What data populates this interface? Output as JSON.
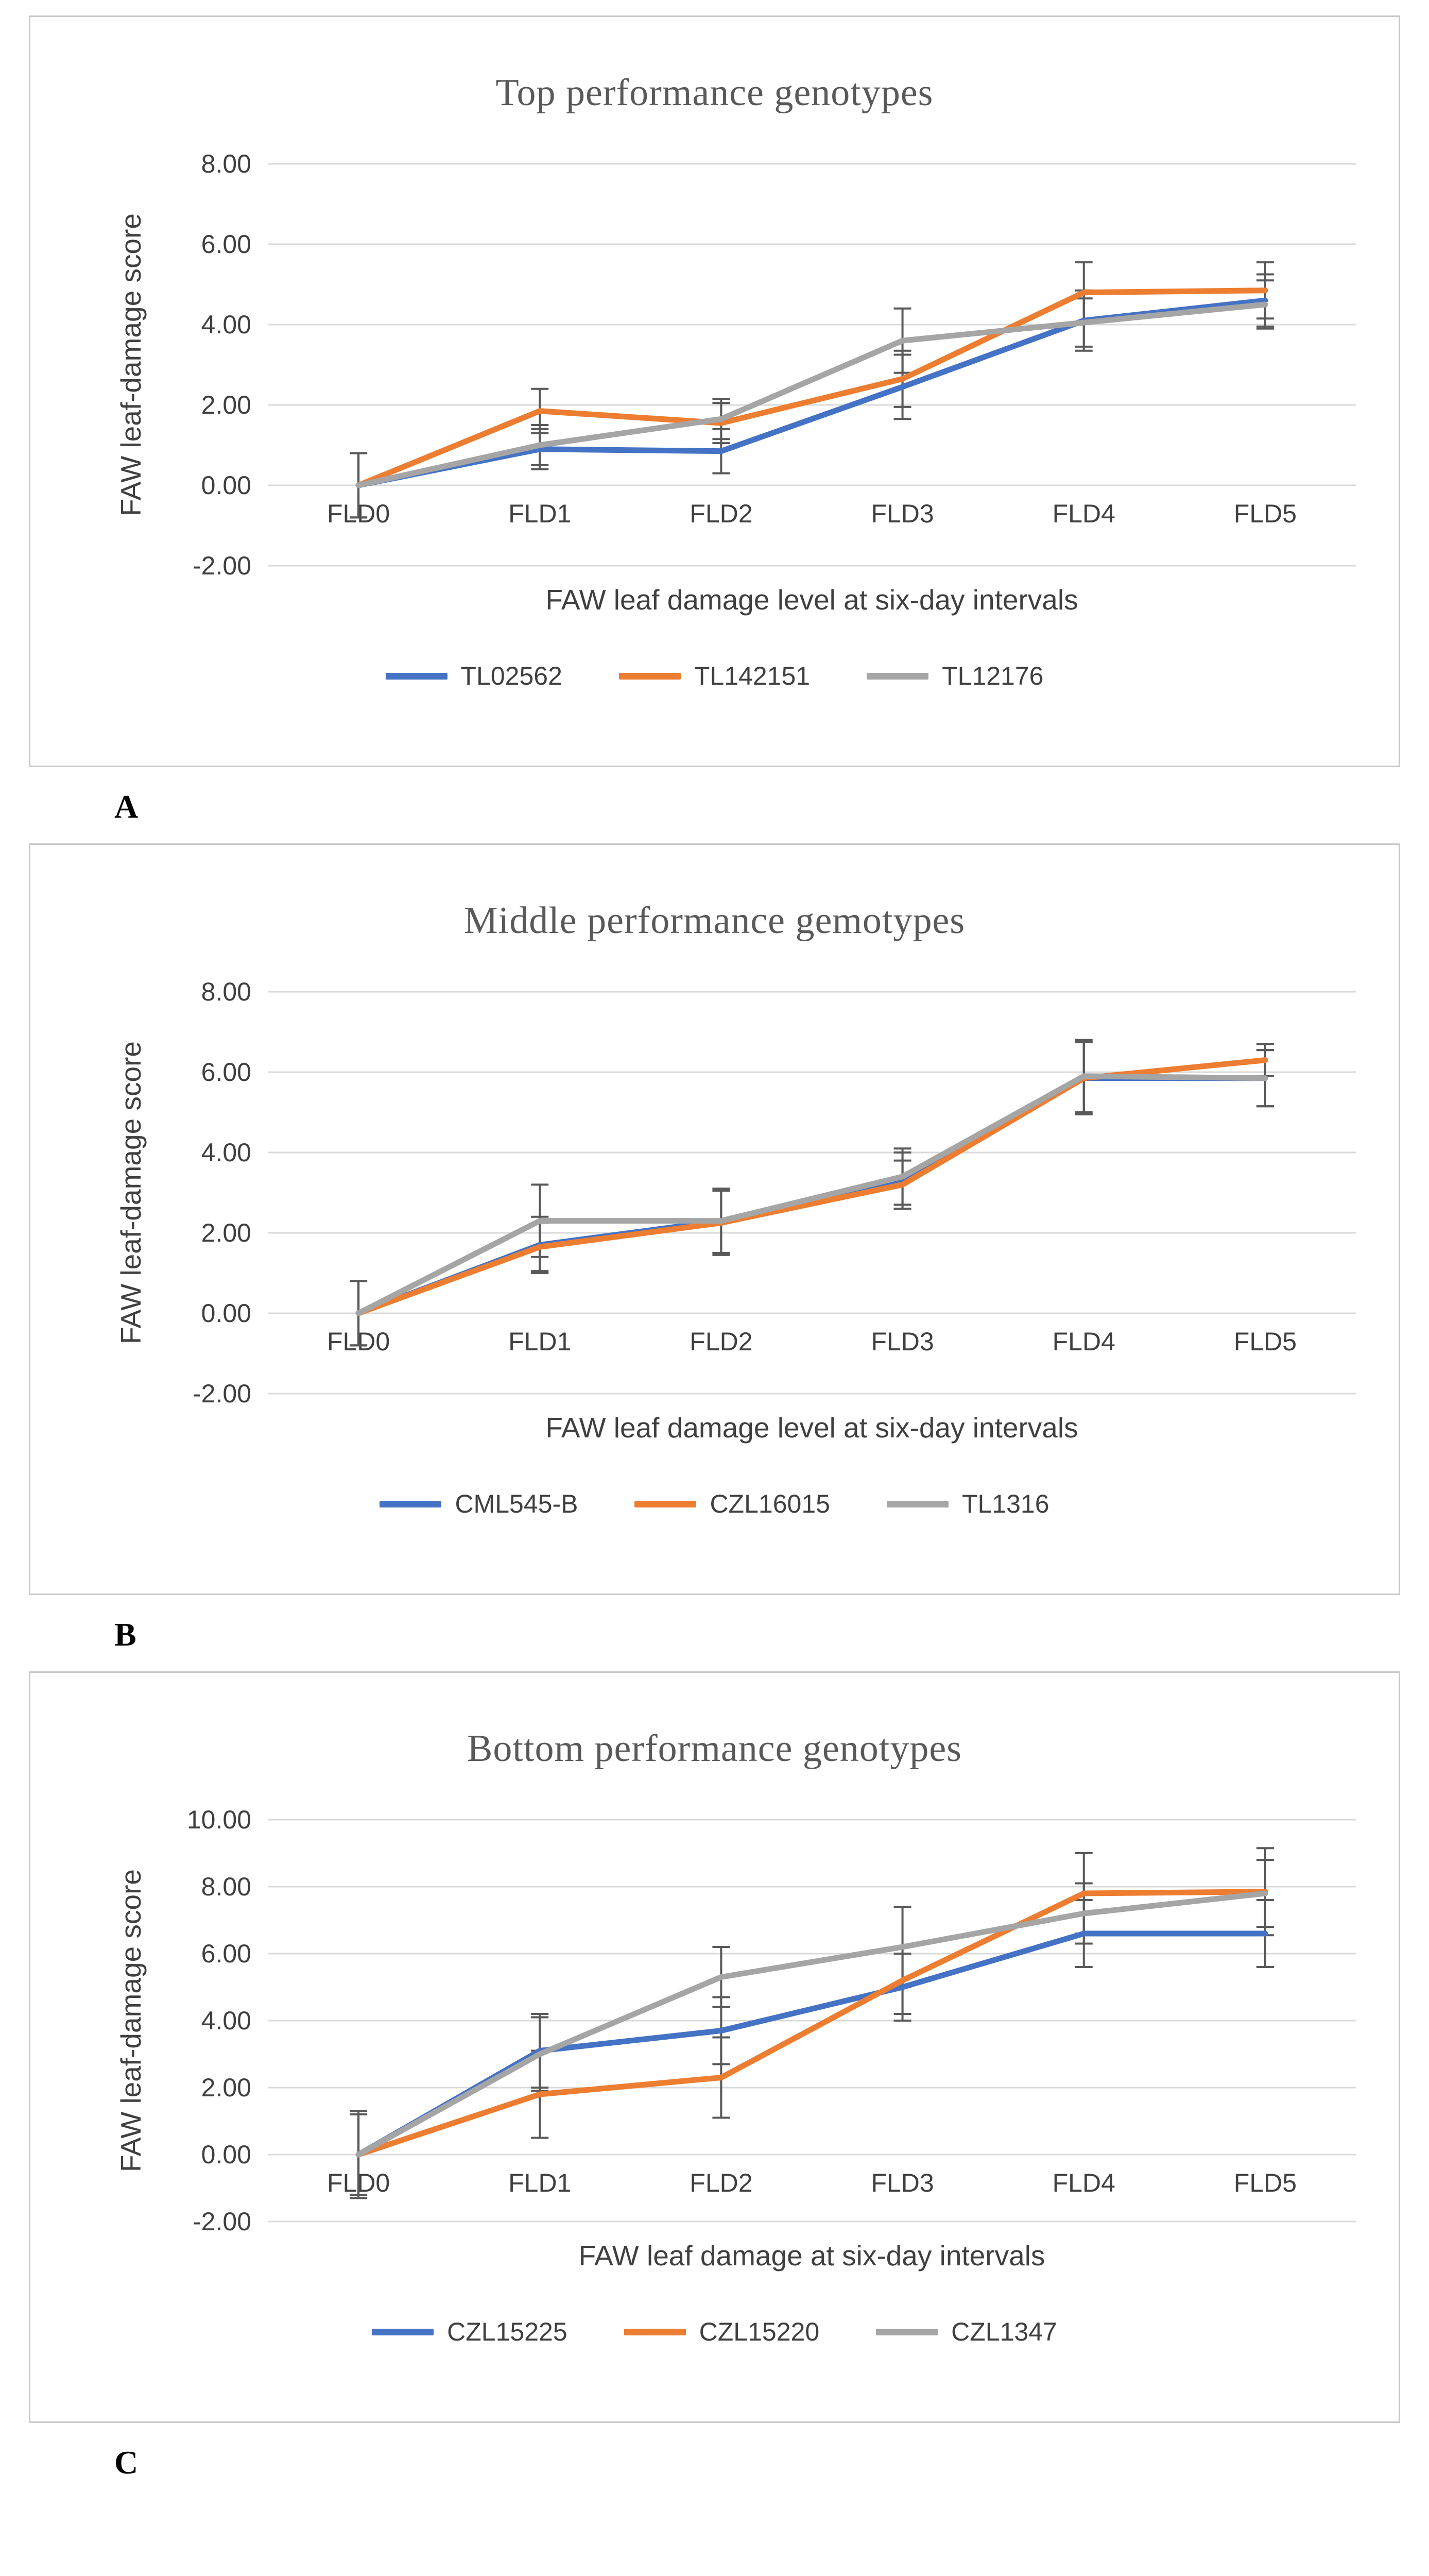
{
  "page": {
    "background": "#ffffff"
  },
  "panel_labels": [
    "A",
    "B",
    "C"
  ],
  "colors": {
    "grid": "#d9d9d9",
    "tick_text": "#3f3f3f",
    "title_text": "#595959",
    "error_bar": "#595959",
    "panel_border": "#c9c9c9",
    "series_blue": "#4472c4",
    "series_orange": "#ed7d31",
    "series_gray": "#a5a5a5"
  },
  "chart_data": [
    {
      "type": "line",
      "title": "Top performance genotypes",
      "xlabel": "FAW leaf damage level at six-day intervals",
      "ylabel": "FAW leaf-damage score",
      "categories": [
        "FLD0",
        "FLD1",
        "FLD2",
        "FLD3",
        "FLD4",
        "FLD5"
      ],
      "ylim": [
        -2,
        8
      ],
      "ytick_step": 2,
      "ytick_labels": [
        "8.00",
        "6.00",
        "4.00",
        "2.00",
        "0.00",
        "-2.00"
      ],
      "grid": true,
      "legend_position": "bottom",
      "error_bars": true,
      "series": [
        {
          "name": "TL02562",
          "color": "#4472c4",
          "values": [
            0,
            0.9,
            0.85,
            2.45,
            4.1,
            4.6
          ],
          "errors": [
            0.8,
            0.5,
            0.55,
            0.8,
            0.75,
            0.65
          ]
        },
        {
          "name": "TL142151",
          "color": "#ed7d31",
          "values": [
            0,
            1.85,
            1.55,
            2.65,
            4.8,
            4.85
          ],
          "errors": [
            0.8,
            0.55,
            0.5,
            0.7,
            0.75,
            0.7
          ]
        },
        {
          "name": "TL12176",
          "color": "#a5a5a5",
          "values": [
            0,
            1.0,
            1.65,
            3.6,
            4.05,
            4.5
          ],
          "errors": [
            0.8,
            0.5,
            0.5,
            0.8,
            0.6,
            0.6
          ]
        }
      ]
    },
    {
      "type": "line",
      "title": "Middle performance gemotypes",
      "xlabel": "FAW leaf damage level at six-day intervals",
      "ylabel": "FAW leaf-damage score",
      "categories": [
        "FLD0",
        "FLD1",
        "FLD2",
        "FLD3",
        "FLD4",
        "FLD5"
      ],
      "ylim": [
        -2,
        8
      ],
      "ytick_step": 2,
      "ytick_labels": [
        "8.00",
        "6.00",
        "4.00",
        "2.00",
        "0.00",
        "-2.00"
      ],
      "grid": true,
      "legend_position": "bottom",
      "error_bars": true,
      "series": [
        {
          "name": "CML545-B",
          "color": "#4472c4",
          "values": [
            0,
            1.7,
            2.3,
            3.3,
            5.85,
            5.85
          ],
          "errors": [
            0.8,
            0.7,
            0.8,
            0.7,
            0.9,
            0.7
          ]
        },
        {
          "name": "CZL16015",
          "color": "#ed7d31",
          "values": [
            0,
            1.65,
            2.25,
            3.2,
            5.85,
            6.3
          ],
          "errors": [
            0.8,
            0.6,
            0.8,
            0.6,
            0.9,
            0.4
          ]
        },
        {
          "name": "TL1316",
          "color": "#a5a5a5",
          "values": [
            0,
            2.3,
            2.3,
            3.4,
            5.9,
            5.85
          ],
          "errors": [
            0.8,
            0.9,
            0.8,
            0.7,
            0.9,
            0.7
          ]
        }
      ]
    },
    {
      "type": "line",
      "title": "Bottom performance genotypes",
      "xlabel": "FAW leaf damage at six-day intervals",
      "ylabel": "FAW leaf-damage score",
      "categories": [
        "FLD0",
        "FLD1",
        "FLD2",
        "FLD3",
        "FLD4",
        "FLD5"
      ],
      "ylim": [
        -2,
        10
      ],
      "ytick_step": 2,
      "ytick_labels": [
        "10.00",
        "8.00",
        "6.00",
        "4.00",
        "2.00",
        "0.00",
        "-2.00"
      ],
      "grid": true,
      "legend_position": "bottom",
      "error_bars": true,
      "series": [
        {
          "name": "CZL15225",
          "color": "#4472c4",
          "values": [
            0,
            3.1,
            3.7,
            5.0,
            6.6,
            6.6
          ],
          "errors": [
            1.2,
            1.1,
            1.0,
            1.0,
            1.0,
            1.0
          ]
        },
        {
          "name": "CZL15220",
          "color": "#ed7d31",
          "values": [
            0,
            1.8,
            2.3,
            5.2,
            7.8,
            7.85
          ],
          "errors": [
            1.3,
            1.3,
            1.2,
            1.0,
            1.2,
            1.3
          ]
        },
        {
          "name": "CZL1347",
          "color": "#a5a5a5",
          "values": [
            0,
            3.0,
            5.3,
            6.2,
            7.2,
            7.8
          ],
          "errors": [
            1.2,
            1.1,
            0.9,
            1.2,
            0.9,
            1.0
          ]
        }
      ]
    }
  ]
}
